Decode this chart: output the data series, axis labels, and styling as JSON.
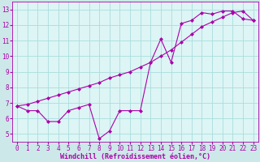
{
  "background_color": "#cce8e8",
  "plot_bg_color": "#ddf5f5",
  "grid_color": "#aadddd",
  "line_color": "#aa00aa",
  "marker_color": "#aa00aa",
  "xlabel": "Windchill (Refroidissement éolien,°C)",
  "xlim": [
    -0.5,
    23.5
  ],
  "ylim": [
    4.5,
    13.5
  ],
  "yticks": [
    5,
    6,
    7,
    8,
    9,
    10,
    11,
    12,
    13
  ],
  "xticks": [
    0,
    1,
    2,
    3,
    4,
    5,
    6,
    7,
    8,
    9,
    10,
    11,
    12,
    13,
    14,
    15,
    16,
    17,
    18,
    19,
    20,
    21,
    22,
    23
  ],
  "line1_x": [
    0,
    1,
    2,
    3,
    4,
    5,
    6,
    7,
    8,
    9,
    10,
    11,
    12,
    13,
    14,
    15,
    16,
    17,
    18,
    19,
    20,
    21,
    22,
    23
  ],
  "line1_y": [
    6.8,
    6.5,
    6.5,
    5.8,
    5.8,
    6.5,
    6.7,
    6.9,
    4.7,
    5.2,
    6.5,
    6.5,
    6.5,
    9.6,
    11.1,
    9.6,
    12.1,
    12.3,
    12.8,
    12.7,
    12.9,
    12.9,
    12.4,
    12.3
  ],
  "line2_x": [
    0,
    1,
    2,
    3,
    4,
    5,
    6,
    7,
    8,
    9,
    10,
    11,
    12,
    13,
    14,
    15,
    16,
    17,
    18,
    19,
    20,
    21,
    22,
    23
  ],
  "line2_y": [
    6.8,
    6.9,
    7.1,
    7.3,
    7.5,
    7.7,
    7.9,
    8.1,
    8.3,
    8.6,
    8.8,
    9.0,
    9.3,
    9.6,
    10.0,
    10.4,
    10.9,
    11.4,
    11.9,
    12.2,
    12.5,
    12.8,
    12.9,
    12.3
  ],
  "font_family": "monospace",
  "tick_fontsize": 5.5,
  "label_fontsize": 6.0
}
